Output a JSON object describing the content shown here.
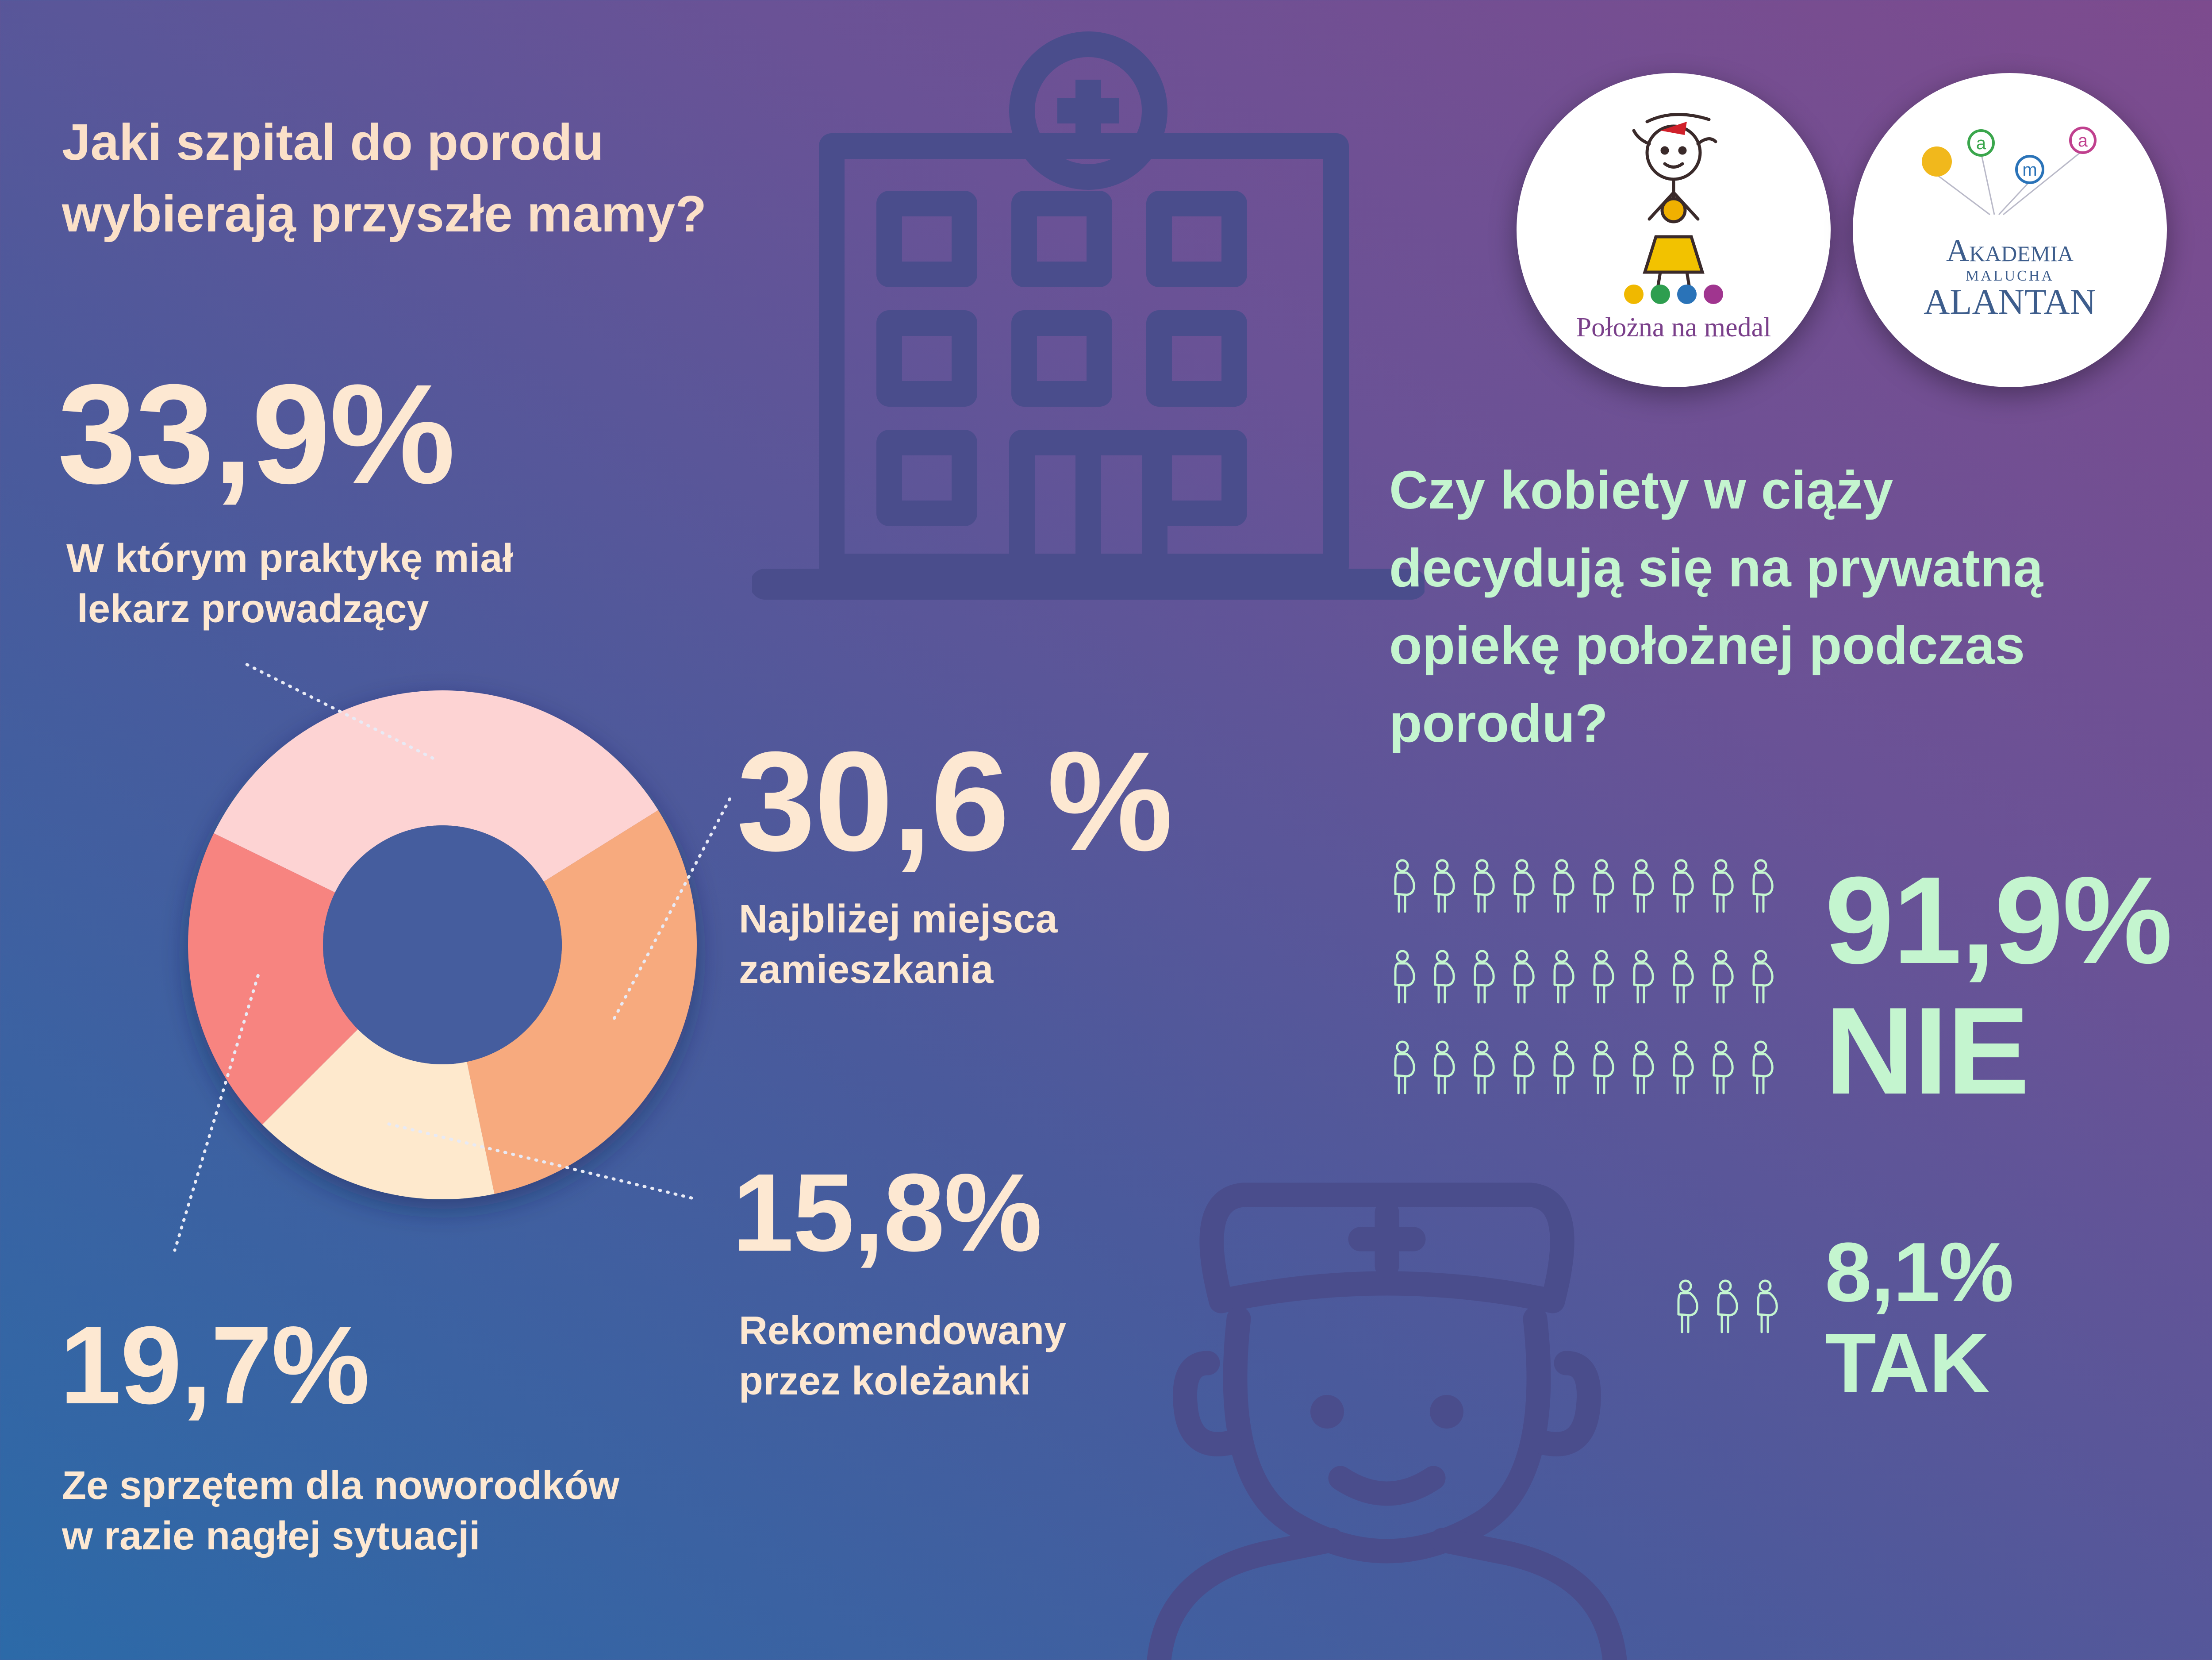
{
  "left_heading": {
    "line1": "Jaki szpital do porodu",
    "line2": "wybierają przyszłe mamy?"
  },
  "chart_data": {
    "type": "pie",
    "subtype": "donut",
    "categories": [
      "W którym praktykę miał lekarz prowadzący",
      "Najbliżej miejsca zamieszkania",
      "Rekomendowany przez koleżanki",
      "Ze sprzętem dla noworodków w razie nagłej sytuacji"
    ],
    "values": [
      33.9,
      30.6,
      15.8,
      19.7
    ],
    "colors": [
      "#fdd3d3",
      "#f7aa7e",
      "#fee9cd",
      "#f78480"
    ]
  },
  "stats": {
    "s1": {
      "value": "33,9%",
      "line1": "W którym praktykę miał",
      "line2": "lekarz prowadzący"
    },
    "s2": {
      "value": "30,6 %",
      "line1": "Najbliżej miejsca",
      "line2": "zamieszkania"
    },
    "s3": {
      "value": "15,8%",
      "line1": "Rekomendowany",
      "line2": "przez koleżanki"
    },
    "s4": {
      "value": "19,7%",
      "line1": "Ze sprzętem dla noworodków",
      "line2": "w razie nagłej sytuacji"
    }
  },
  "right_heading": {
    "line1": "Czy kobiety w ciąży",
    "line2": "decydują się na prywatną",
    "line3": "opiekę położnej podczas",
    "line4": "porodu?"
  },
  "answers": {
    "no": {
      "value": "91,9%",
      "label": "NIE",
      "icon_count": 30
    },
    "yes": {
      "value": "8,1%",
      "label": "TAK",
      "icon_count": 3
    }
  },
  "logos": {
    "logo1": {
      "text": "Położna na medal",
      "dot_colors": [
        "#f0b800",
        "#2e9e4f",
        "#2a73b8",
        "#a0358f"
      ]
    },
    "logo2": {
      "balloon_letters": [
        "a",
        "m",
        "a"
      ],
      "line1": "Akademia",
      "line2": "Malucha",
      "line3": "Alantan"
    }
  },
  "colors": {
    "heading": "#fbe0c8",
    "stat_text": "#fde8d2",
    "green": "#c4f5cf",
    "icon_outline": "#4a4d8c"
  },
  "icons": [
    "hospital-icon",
    "nurse-icon",
    "pregnant-woman-icon"
  ]
}
